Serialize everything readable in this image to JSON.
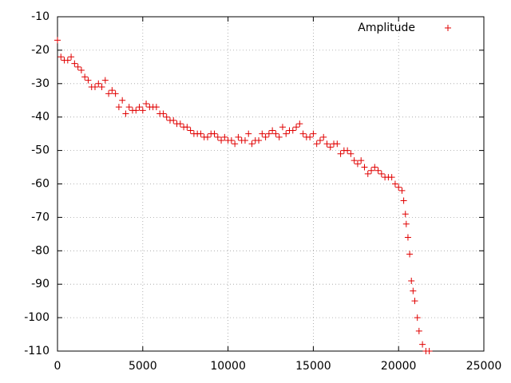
{
  "chart_data": {
    "type": "scatter",
    "marker": "+",
    "series": [
      {
        "name": "Amplitude",
        "color": "#e00000",
        "x": [
          0,
          200,
          400,
          600,
          800,
          1000,
          1200,
          1400,
          1600,
          1800,
          2000,
          2200,
          2400,
          2600,
          2800,
          3000,
          3200,
          3400,
          3600,
          3800,
          4000,
          4200,
          4400,
          4600,
          4800,
          5000,
          5200,
          5400,
          5600,
          5800,
          6000,
          6200,
          6400,
          6600,
          6800,
          7000,
          7200,
          7400,
          7600,
          7800,
          8000,
          8200,
          8400,
          8600,
          8800,
          9000,
          9200,
          9400,
          9600,
          9800,
          10000,
          10200,
          10400,
          10600,
          10800,
          11000,
          11200,
          11400,
          11600,
          11800,
          12000,
          12200,
          12400,
          12600,
          12800,
          13000,
          13200,
          13400,
          13600,
          13800,
          14000,
          14200,
          14400,
          14600,
          14800,
          15000,
          15200,
          15400,
          15600,
          15800,
          16000,
          16200,
          16400,
          16600,
          16800,
          17000,
          17200,
          17400,
          17600,
          17800,
          18000,
          18200,
          18400,
          18600,
          18800,
          19000,
          19200,
          19400,
          19600,
          19800,
          20000,
          20200,
          20300,
          20400,
          20450,
          20550,
          20650,
          20750,
          20850,
          20950,
          21100,
          21200,
          21400,
          21600,
          21800
        ],
        "values": [
          -17,
          -22,
          -23,
          -23,
          -22,
          -24,
          -25,
          -26,
          -28,
          -29,
          -31,
          -31,
          -30,
          -31,
          -29,
          -33,
          -32,
          -33,
          -37,
          -35,
          -39,
          -37,
          -38,
          -38,
          -37,
          -38,
          -36,
          -37,
          -37,
          -37,
          -39,
          -39,
          -40,
          -41,
          -41,
          -42,
          -42,
          -43,
          -43,
          -44,
          -45,
          -45,
          -45,
          -46,
          -46,
          -45,
          -45,
          -46,
          -47,
          -46,
          -47,
          -47,
          -48,
          -46,
          -47,
          -47,
          -45,
          -48,
          -47,
          -47,
          -45,
          -46,
          -45,
          -44,
          -45,
          -46,
          -43,
          -45,
          -44,
          -44,
          -43,
          -42,
          -45,
          -46,
          -46,
          -45,
          -48,
          -47,
          -46,
          -48,
          -49,
          -48,
          -48,
          -51,
          -50,
          -50,
          -51,
          -53,
          -54,
          -53,
          -55,
          -57,
          -56,
          -55,
          -56,
          -57,
          -58,
          -58,
          -58,
          -60,
          -61,
          -62,
          -65,
          -69,
          -72,
          -76,
          -81,
          -89,
          -92,
          -95,
          -100,
          -104,
          -108,
          -110,
          -110
        ]
      }
    ],
    "xlim": [
      0,
      25000
    ],
    "xticks": [
      0,
      5000,
      10000,
      15000,
      20000,
      25000
    ],
    "ylim": [
      -110,
      -10
    ],
    "yticks": [
      -110,
      -100,
      -90,
      -80,
      -70,
      -60,
      -50,
      -40,
      -30,
      -20,
      -10
    ],
    "grid": true,
    "legend": "top-right"
  }
}
